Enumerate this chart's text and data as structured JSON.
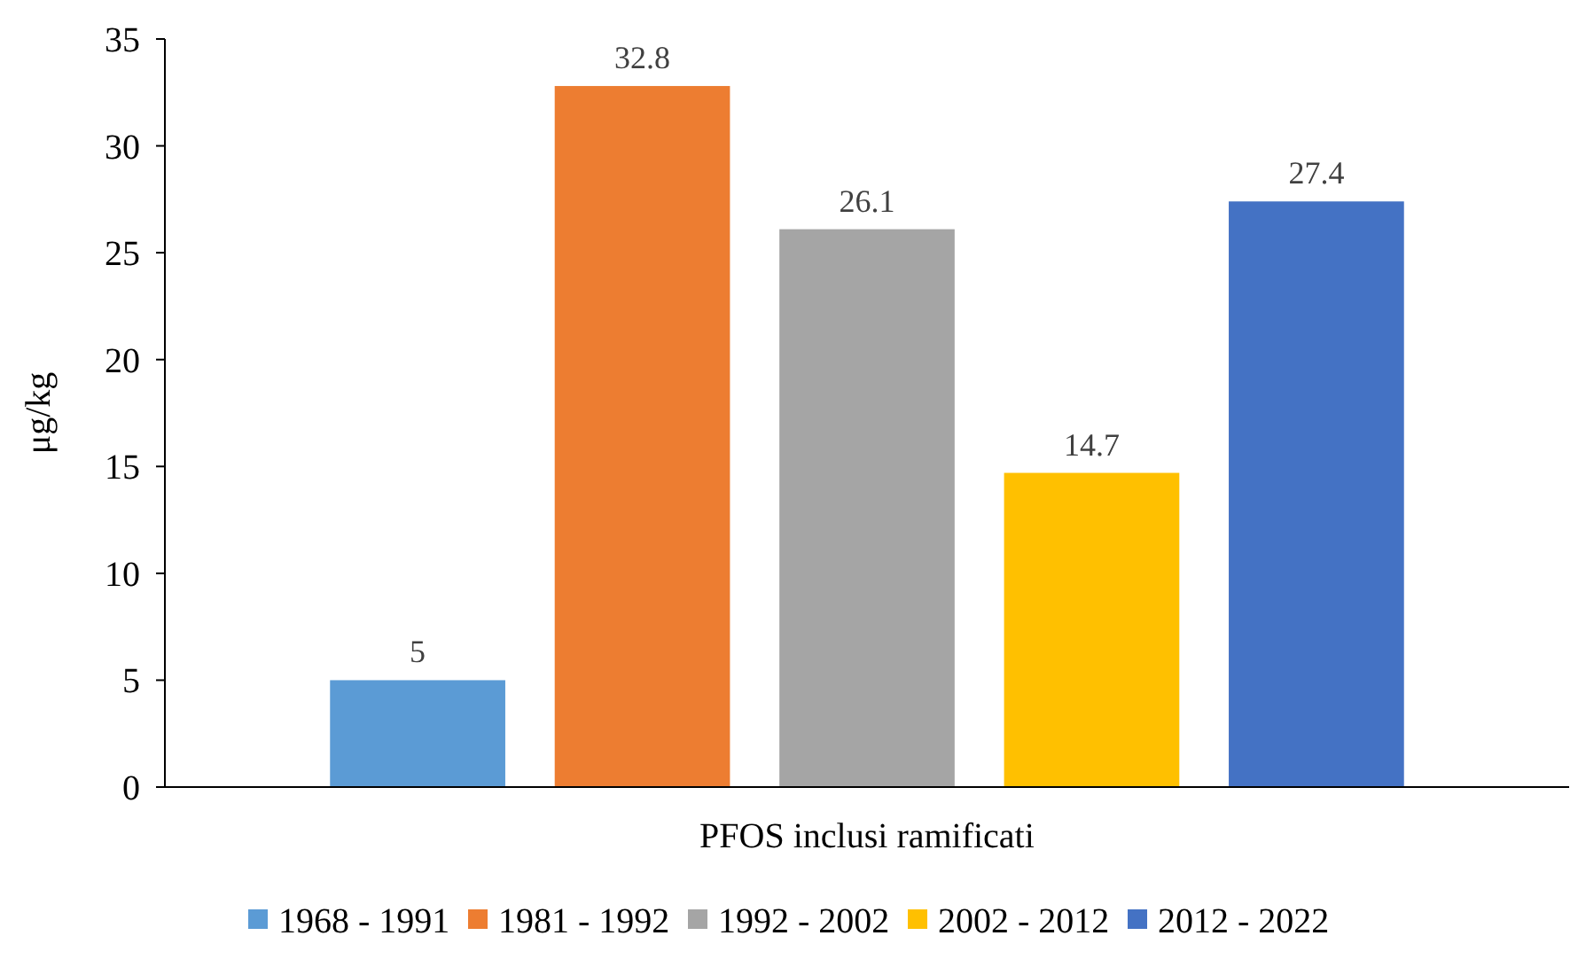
{
  "chart_data": {
    "type": "bar",
    "ylabel": "μg/kg",
    "categories": [
      "PFOS inclusi ramificati"
    ],
    "series": [
      {
        "name": "1968 - 1991",
        "color": "#5b9bd5",
        "values": [
          5
        ]
      },
      {
        "name": "1981 - 1992",
        "color": "#ed7d31",
        "values": [
          32.8
        ]
      },
      {
        "name": "1992 - 2002",
        "color": "#a5a5a5",
        "values": [
          26.1
        ]
      },
      {
        "name": "2002 - 2012",
        "color": "#ffc000",
        "values": [
          14.7
        ]
      },
      {
        "name": "2012 - 2022",
        "color": "#4472c4",
        "values": [
          27.4
        ]
      }
    ],
    "ylim": [
      0,
      35
    ],
    "yticks": [
      0,
      5,
      10,
      15,
      20,
      25,
      30,
      35
    ],
    "data_labels": true,
    "grid": false,
    "legend": "bottom"
  }
}
